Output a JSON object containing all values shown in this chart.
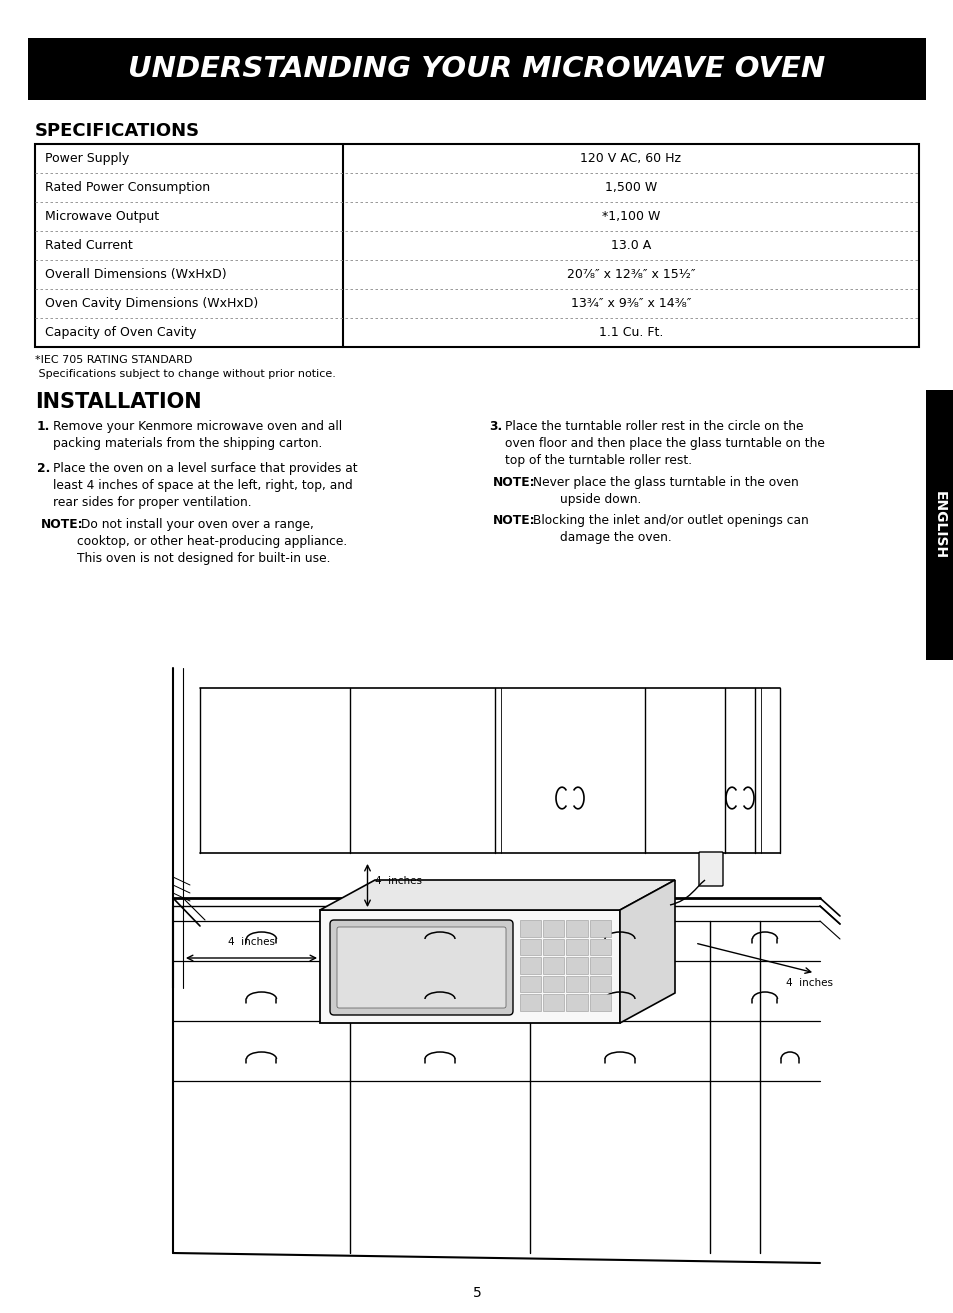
{
  "title": "UNDERSTANDING YOUR MICROWAVE OVEN",
  "title_bg": "#000000",
  "title_color": "#ffffff",
  "specs_heading": "SPECIFICATIONS",
  "specs_rows": [
    [
      "Power Supply",
      "120 V AC, 60 Hz"
    ],
    [
      "Rated Power Consumption",
      "1,500 W"
    ],
    [
      "Microwave Output",
      "*1,100 W"
    ],
    [
      "Rated Current",
      "13.0 A"
    ],
    [
      "Overall Dimensions (WxHxD)",
      "20⁷⁄₈″ x 12³⁄₈″ x 15¹⁄₂″"
    ],
    [
      "Oven Cavity Dimensions (WxHxD)",
      "13³⁄₄″ x 9³⁄₈″ x 14³⁄₈″"
    ],
    [
      "Capacity of Oven Cavity",
      "1.1 Cu. Ft."
    ]
  ],
  "footnote1": "*IEC 705 RATING STANDARD",
  "footnote2": " Specifications subject to change without prior notice.",
  "install_heading": "INSTALLATION",
  "english_sidebar": "ENGLISH",
  "sidebar_bg": "#000000",
  "sidebar_color": "#ffffff",
  "page_number": "5",
  "bg_color": "#ffffff"
}
